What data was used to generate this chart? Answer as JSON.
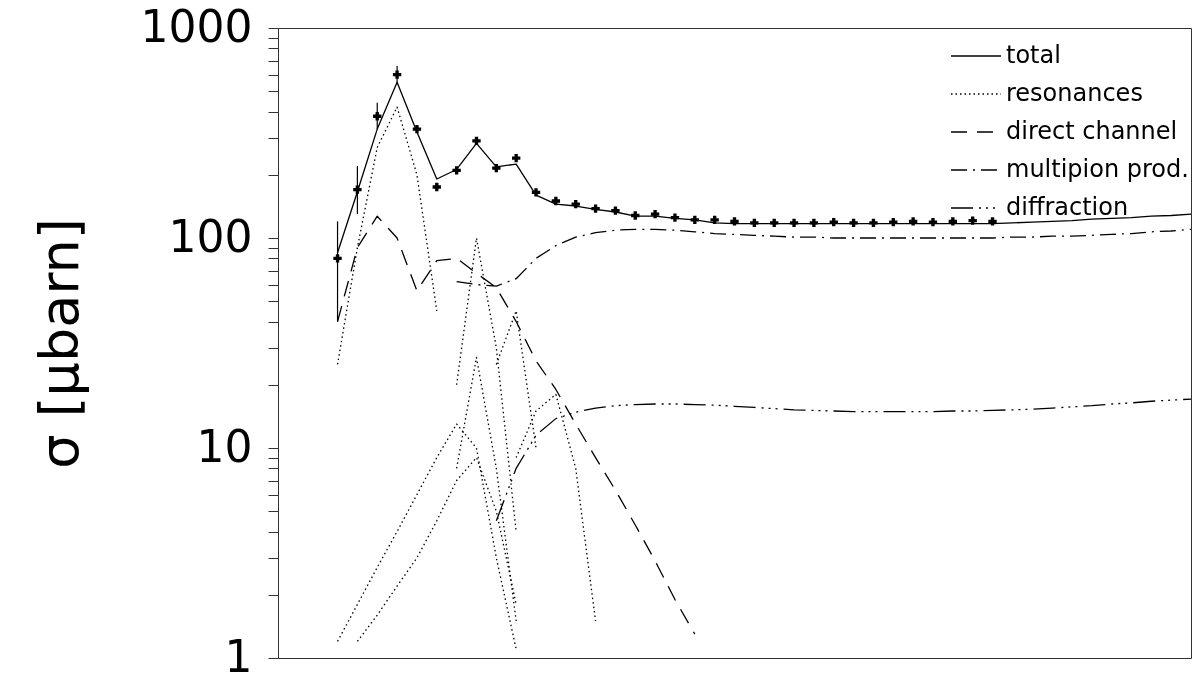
{
  "chart_data": {
    "type": "line",
    "ylabel": "σ [μbarn]",
    "log": true,
    "legend": "top right",
    "categories": [
      null,
      null,
      null,
      null,
      null,
      null,
      null,
      null,
      null,
      null,
      null,
      null,
      null,
      null,
      null,
      null,
      null,
      null,
      null,
      null,
      null,
      null,
      null,
      null,
      null,
      null,
      null,
      null,
      null,
      null,
      null,
      null,
      null,
      null,
      null,
      null,
      null,
      null,
      null,
      null,
      null,
      null,
      null,
      null,
      null,
      null,
      null
    ],
    "ylim": [
      1,
      1000
    ],
    "yticks": [
      1,
      {
        "value": 2,
        "label": null
      },
      {
        "value": 3,
        "label": null
      },
      {
        "value": 4,
        "label": null
      },
      {
        "value": 5,
        "label": null
      },
      {
        "value": 6,
        "label": null
      },
      {
        "value": 7,
        "label": null
      },
      {
        "value": 8,
        "label": null
      },
      {
        "value": 9,
        "label": null
      },
      10,
      {
        "value": 20,
        "label": null
      },
      {
        "value": 30,
        "label": null
      },
      {
        "value": 40,
        "label": null
      },
      {
        "value": 50,
        "label": null
      },
      {
        "value": 60,
        "label": null
      },
      {
        "value": 70,
        "label": null
      },
      {
        "value": 80,
        "label": null
      },
      {
        "value": 90,
        "label": null
      },
      100,
      {
        "value": 200,
        "label": null
      },
      {
        "value": 300,
        "label": null
      },
      {
        "value": 400,
        "label": null
      },
      {
        "value": 500,
        "label": null
      },
      {
        "value": 600,
        "label": null
      },
      {
        "value": 700,
        "label": null
      },
      {
        "value": 800,
        "label": null
      },
      {
        "value": 900,
        "label": null
      },
      1000
    ],
    "series": [
      {
        "name": "total",
        "color": "#000000",
        "line_style": "solid",
        "values": [
          null,
          null,
          null,
          85,
          166,
          330,
          551,
          320,
          191,
          212,
          282,
          218,
          225,
          160,
          145,
          142,
          137,
          133,
          127,
          127,
          124,
          122,
          118,
          117,
          117,
          117,
          117,
          117,
          117,
          117,
          117,
          117,
          117,
          117,
          117,
          117,
          117,
          118,
          119,
          120,
          121,
          123,
          124,
          125,
          127,
          128,
          130
        ]
      },
      {
        "name": "resonances",
        "color": "#000000",
        "line_style": "dotted",
        "values": [
          null,
          null,
          null,
          25,
          90,
          270,
          420,
          200,
          45,
          null,
          null,
          null,
          null,
          null,
          null,
          null,
          null,
          null,
          null,
          null,
          null,
          null,
          null,
          null,
          null,
          null,
          null,
          null,
          null,
          null,
          null,
          null,
          null,
          null,
          null,
          null,
          null,
          null,
          null,
          null,
          null,
          null,
          null,
          null,
          null,
          null,
          null
        ]
      },
      {
        "name": "direct channel",
        "color": "#000000",
        "line_style": "dashed",
        "values": [
          null,
          null,
          null,
          40,
          90,
          127,
          100,
          56,
          78,
          80,
          68,
          58,
          40,
          26,
          19,
          13,
          9,
          6.3,
          4.3,
          2.9,
          1.9,
          1.3,
          null,
          null,
          null,
          null,
          null,
          null,
          null,
          null,
          null,
          null,
          null,
          null,
          null,
          null,
          null,
          null,
          null,
          null,
          null,
          null,
          null,
          null,
          null,
          null,
          null
        ]
      },
      {
        "name": "multipion prod.",
        "color": "#000000",
        "line_style": "dashdot",
        "values": [
          null,
          null,
          null,
          null,
          null,
          null,
          null,
          null,
          null,
          62,
          60,
          59,
          64,
          80,
          92,
          101,
          106,
          109,
          110,
          110,
          109,
          107,
          105,
          104,
          103,
          102,
          101,
          101,
          100,
          100,
          100,
          100,
          100,
          100,
          100,
          100,
          100,
          101,
          101,
          102,
          102,
          103,
          104,
          105,
          107,
          108,
          110
        ]
      },
      {
        "name": "diffraction",
        "color": "#000000",
        "line_style": "dashdotdotdot",
        "values": [
          null,
          null,
          null,
          null,
          null,
          null,
          null,
          null,
          null,
          null,
          null,
          4.5,
          8,
          11.5,
          13.8,
          14.8,
          15.5,
          15.9,
          16.1,
          16.2,
          16.2,
          16.1,
          16.0,
          15.8,
          15.6,
          15.4,
          15.2,
          15.1,
          15.0,
          14.9,
          14.9,
          14.9,
          14.9,
          14.9,
          15.0,
          15.0,
          15.1,
          15.2,
          15.3,
          15.5,
          15.7,
          15.9,
          16.2,
          16.4,
          16.7,
          16.9,
          17.1
        ]
      },
      {
        "color": "#000000",
        "line_style": "dotted",
        "values": [
          null,
          null,
          null,
          null,
          null,
          null,
          null,
          null,
          null,
          20,
          100,
          30,
          4,
          null,
          null,
          null,
          null,
          null,
          null,
          null,
          null,
          null,
          null,
          null,
          null,
          null,
          null,
          null,
          null,
          null,
          null,
          null,
          null,
          null,
          null,
          null,
          null,
          null,
          null,
          null,
          null,
          null,
          null,
          null,
          null,
          null,
          null
        ]
      },
      {
        "color": "#000000",
        "line_style": "dotted",
        "values": [
          null,
          null,
          null,
          null,
          null,
          null,
          null,
          null,
          null,
          null,
          null,
          25,
          45,
          10,
          null,
          null,
          null,
          null,
          null,
          null,
          null,
          null,
          null,
          null,
          null,
          null,
          null,
          null,
          null,
          null,
          null,
          null,
          null,
          null,
          null,
          null,
          null,
          null,
          null,
          null,
          null,
          null,
          null,
          null,
          null,
          null,
          null
        ]
      },
      {
        "color": "#000000",
        "line_style": "dotted",
        "values": [
          null,
          null,
          null,
          null,
          null,
          null,
          null,
          null,
          null,
          8,
          27,
          8,
          1.5,
          null,
          null,
          null,
          null,
          null,
          null,
          null,
          null,
          null,
          null,
          null,
          null,
          null,
          null,
          null,
          null,
          null,
          null,
          null,
          null,
          null,
          null,
          null,
          null,
          null,
          null,
          null,
          null,
          null,
          null,
          null,
          null,
          null,
          null
        ]
      },
      {
        "color": "#000000",
        "line_style": "dotted",
        "values": [
          null,
          null,
          null,
          null,
          null,
          null,
          null,
          null,
          null,
          null,
          null,
          null,
          9,
          15,
          18,
          8,
          1.5,
          null,
          null,
          null,
          null,
          null,
          null,
          null,
          null,
          null,
          null,
          null,
          null,
          null,
          null,
          null,
          null,
          null,
          null,
          null,
          null,
          null,
          null,
          null,
          null,
          null,
          null,
          null,
          null,
          null,
          null
        ]
      },
      {
        "color": "#000000",
        "line_style": "dotted",
        "values": [
          null,
          null,
          null,
          1.2,
          1.8,
          2.7,
          4,
          6,
          9,
          13,
          10,
          3,
          1.1,
          null,
          null,
          null,
          null,
          null,
          null,
          null,
          null,
          null,
          null,
          null,
          null,
          null,
          null,
          null,
          null,
          null,
          null,
          null,
          null,
          null,
          null,
          null,
          null,
          null,
          null,
          null,
          null,
          null,
          null,
          null,
          null,
          null,
          null
        ]
      },
      {
        "color": "#000000",
        "line_style": "dotted",
        "values": [
          null,
          null,
          null,
          null,
          1.2,
          1.6,
          2.2,
          3,
          4.5,
          7,
          9,
          5,
          1.8,
          null,
          null,
          null,
          null,
          null,
          null,
          null,
          null,
          null,
          null,
          null,
          null,
          null,
          null,
          null,
          null,
          null,
          null,
          null,
          null,
          null,
          null,
          null,
          null,
          null,
          null,
          null,
          null,
          null,
          null,
          null,
          null,
          null,
          null
        ]
      },
      {
        "type": "scatter",
        "color": "#000000",
        "marker": "cross",
        "values": [
          null,
          null,
          null,
          80,
          170,
          380,
          600,
          330,
          175,
          210,
          290,
          215,
          240,
          165,
          150,
          145,
          138,
          135,
          128,
          130,
          125,
          122,
          122,
          120,
          118,
          118,
          118,
          118,
          119,
          118,
          118,
          119,
          120,
          119,
          120,
          121,
          120,
          null,
          null,
          null,
          null,
          null,
          null,
          null,
          null,
          null,
          null
        ],
        "errors": [
          null,
          null,
          null,
          [
            40,
            120
          ],
          [
            130,
            220
          ],
          [
            330,
            440
          ],
          [
            540,
            660
          ],
          null,
          null,
          null,
          null,
          null,
          null,
          null,
          null,
          null,
          null,
          null,
          null,
          null,
          null,
          null,
          null,
          null,
          null,
          null,
          null,
          null,
          null,
          null,
          null,
          null,
          null,
          null,
          null,
          null,
          null,
          null,
          null,
          null,
          null,
          null,
          null,
          null,
          null,
          null,
          null
        ]
      }
    ]
  }
}
